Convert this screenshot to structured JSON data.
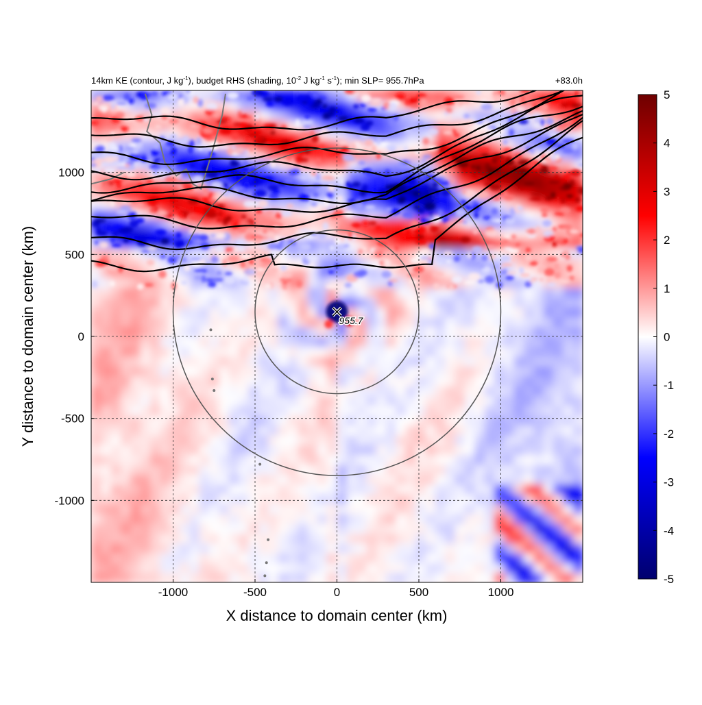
{
  "chart_data": {
    "type": "heatmap",
    "title": {
      "left_parts": {
        "p1": "14km KE (contour, J kg",
        "p1_sup": "-1",
        "p2": "), budget RHS (shading, 10",
        "p2_sup": "-2",
        "p3": " J kg",
        "p3_sup": "-1",
        "p4": " s",
        "p4_sup": "-1",
        "p5": "); min SLP= 955.7hPa"
      },
      "right": "+83.0h"
    },
    "xlabel": "X distance to domain center (km)",
    "ylabel": "Y distance to domain center (km)",
    "xlim": [
      -1500,
      1500
    ],
    "ylim": [
      -1500,
      1500
    ],
    "xticks": [
      {
        "value": -1000,
        "label": "-1000"
      },
      {
        "value": -500,
        "label": "-500"
      },
      {
        "value": 0,
        "label": "0"
      },
      {
        "value": 500,
        "label": "500"
      },
      {
        "value": 1000,
        "label": "1000"
      }
    ],
    "yticks": [
      {
        "value": 1000,
        "label": "1000"
      },
      {
        "value": 500,
        "label": "500"
      },
      {
        "value": 0,
        "label": "0"
      },
      {
        "value": -500,
        "label": "-500"
      },
      {
        "value": -1000,
        "label": "-1000"
      }
    ],
    "grid": true,
    "colorbar": {
      "min": -5,
      "max": 5,
      "ticks": [
        {
          "value": 5,
          "label": "5"
        },
        {
          "value": 4,
          "label": "4"
        },
        {
          "value": 3,
          "label": "3"
        },
        {
          "value": 2,
          "label": "2"
        },
        {
          "value": 1,
          "label": "1"
        },
        {
          "value": 0,
          "label": "0"
        },
        {
          "value": -1,
          "label": "-1"
        },
        {
          "value": -2,
          "label": "-2"
        },
        {
          "value": -3,
          "label": "-3"
        },
        {
          "value": -4,
          "label": "-4"
        },
        {
          "value": -5,
          "label": "-5"
        }
      ],
      "colors": [
        "#00006e",
        "#0000ff",
        "#ffffff",
        "#ff0000",
        "#6e0000"
      ]
    },
    "storm_center": {
      "x": 0,
      "y": 150,
      "label": "955.7"
    },
    "rings_radius_km": [
      500,
      1000
    ],
    "ke_contour_levels_y_km": [
      1300,
      1200,
      1100,
      1010,
      930,
      860,
      800,
      700,
      580,
      450
    ]
  }
}
